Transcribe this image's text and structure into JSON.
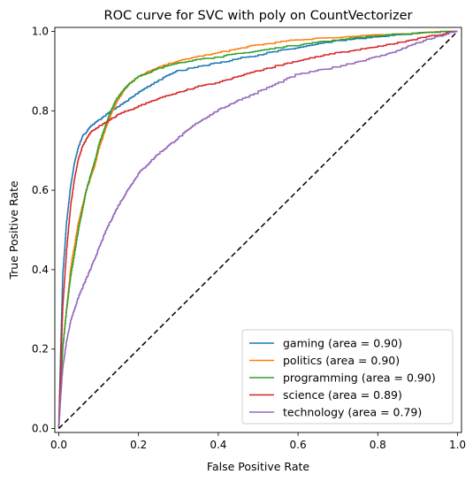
{
  "chart_data": {
    "type": "line",
    "title": "ROC curve for SVC with poly on CountVectorizer",
    "xlabel": "False Positive Rate",
    "ylabel": "True Positive Rate",
    "xlim": [
      -0.01,
      1.01
    ],
    "ylim": [
      -0.01,
      1.01
    ],
    "x_ticks": [
      "0.0",
      "0.2",
      "0.4",
      "0.6",
      "0.8",
      "1.0"
    ],
    "y_ticks": [
      "0.0",
      "0.2",
      "0.4",
      "0.6",
      "0.8",
      "1.0"
    ],
    "grid": false,
    "legend_position": "bottom-right",
    "series": [
      {
        "name": "gaming (area = 0.90)",
        "color": "#1f77b4",
        "x": [
          0,
          0.005,
          0.01,
          0.02,
          0.03,
          0.04,
          0.05,
          0.06,
          0.08,
          0.1,
          0.12,
          0.15,
          0.18,
          0.2,
          0.25,
          0.3,
          0.35,
          0.4,
          0.5,
          0.6,
          0.7,
          0.8,
          0.9,
          1.0
        ],
        "y": [
          0,
          0.2,
          0.38,
          0.52,
          0.61,
          0.67,
          0.71,
          0.735,
          0.76,
          0.775,
          0.79,
          0.81,
          0.83,
          0.845,
          0.875,
          0.9,
          0.91,
          0.92,
          0.94,
          0.958,
          0.975,
          0.985,
          0.995,
          1.0
        ]
      },
      {
        "name": "politics (area = 0.90)",
        "color": "#ff7f0e",
        "x": [
          0,
          0.005,
          0.01,
          0.02,
          0.03,
          0.05,
          0.07,
          0.09,
          0.1,
          0.12,
          0.14,
          0.16,
          0.18,
          0.2,
          0.25,
          0.3,
          0.35,
          0.4,
          0.5,
          0.6,
          0.7,
          0.8,
          0.9,
          1.0
        ],
        "y": [
          0,
          0.1,
          0.2,
          0.3,
          0.4,
          0.52,
          0.6,
          0.66,
          0.7,
          0.76,
          0.81,
          0.845,
          0.87,
          0.885,
          0.91,
          0.925,
          0.935,
          0.945,
          0.965,
          0.978,
          0.985,
          0.99,
          0.995,
          1.0
        ]
      },
      {
        "name": "programming (area = 0.90)",
        "color": "#2ca02c",
        "x": [
          0,
          0.005,
          0.01,
          0.02,
          0.03,
          0.05,
          0.07,
          0.09,
          0.1,
          0.12,
          0.14,
          0.16,
          0.18,
          0.2,
          0.25,
          0.3,
          0.35,
          0.4,
          0.5,
          0.6,
          0.7,
          0.8,
          0.9,
          1.0
        ],
        "y": [
          0,
          0.1,
          0.2,
          0.3,
          0.38,
          0.5,
          0.6,
          0.67,
          0.71,
          0.77,
          0.82,
          0.85,
          0.87,
          0.885,
          0.905,
          0.92,
          0.928,
          0.935,
          0.95,
          0.965,
          0.978,
          0.988,
          0.995,
          1.0
        ]
      },
      {
        "name": "science (area = 0.89)",
        "color": "#d62728",
        "x": [
          0,
          0.005,
          0.01,
          0.02,
          0.03,
          0.04,
          0.05,
          0.06,
          0.08,
          0.1,
          0.12,
          0.15,
          0.2,
          0.25,
          0.3,
          0.35,
          0.4,
          0.45,
          0.5,
          0.6,
          0.7,
          0.8,
          0.9,
          1.0
        ],
        "y": [
          0,
          0.15,
          0.3,
          0.45,
          0.56,
          0.63,
          0.68,
          0.71,
          0.745,
          0.76,
          0.77,
          0.79,
          0.81,
          0.83,
          0.845,
          0.86,
          0.87,
          0.885,
          0.9,
          0.925,
          0.945,
          0.96,
          0.98,
          1.0
        ]
      },
      {
        "name": "technology (area = 0.79)",
        "color": "#9467bd",
        "x": [
          0,
          0.005,
          0.01,
          0.02,
          0.03,
          0.05,
          0.08,
          0.1,
          0.12,
          0.15,
          0.18,
          0.2,
          0.25,
          0.3,
          0.35,
          0.4,
          0.45,
          0.5,
          0.6,
          0.7,
          0.8,
          0.85,
          0.9,
          1.0
        ],
        "y": [
          0,
          0.08,
          0.15,
          0.22,
          0.27,
          0.33,
          0.4,
          0.45,
          0.5,
          0.56,
          0.61,
          0.64,
          0.69,
          0.73,
          0.77,
          0.8,
          0.825,
          0.845,
          0.89,
          0.91,
          0.935,
          0.95,
          0.97,
          1.0
        ]
      }
    ],
    "reference_line": {
      "style": "dashed",
      "color": "#000000",
      "x": [
        0,
        1
      ],
      "y": [
        0,
        1
      ]
    }
  }
}
